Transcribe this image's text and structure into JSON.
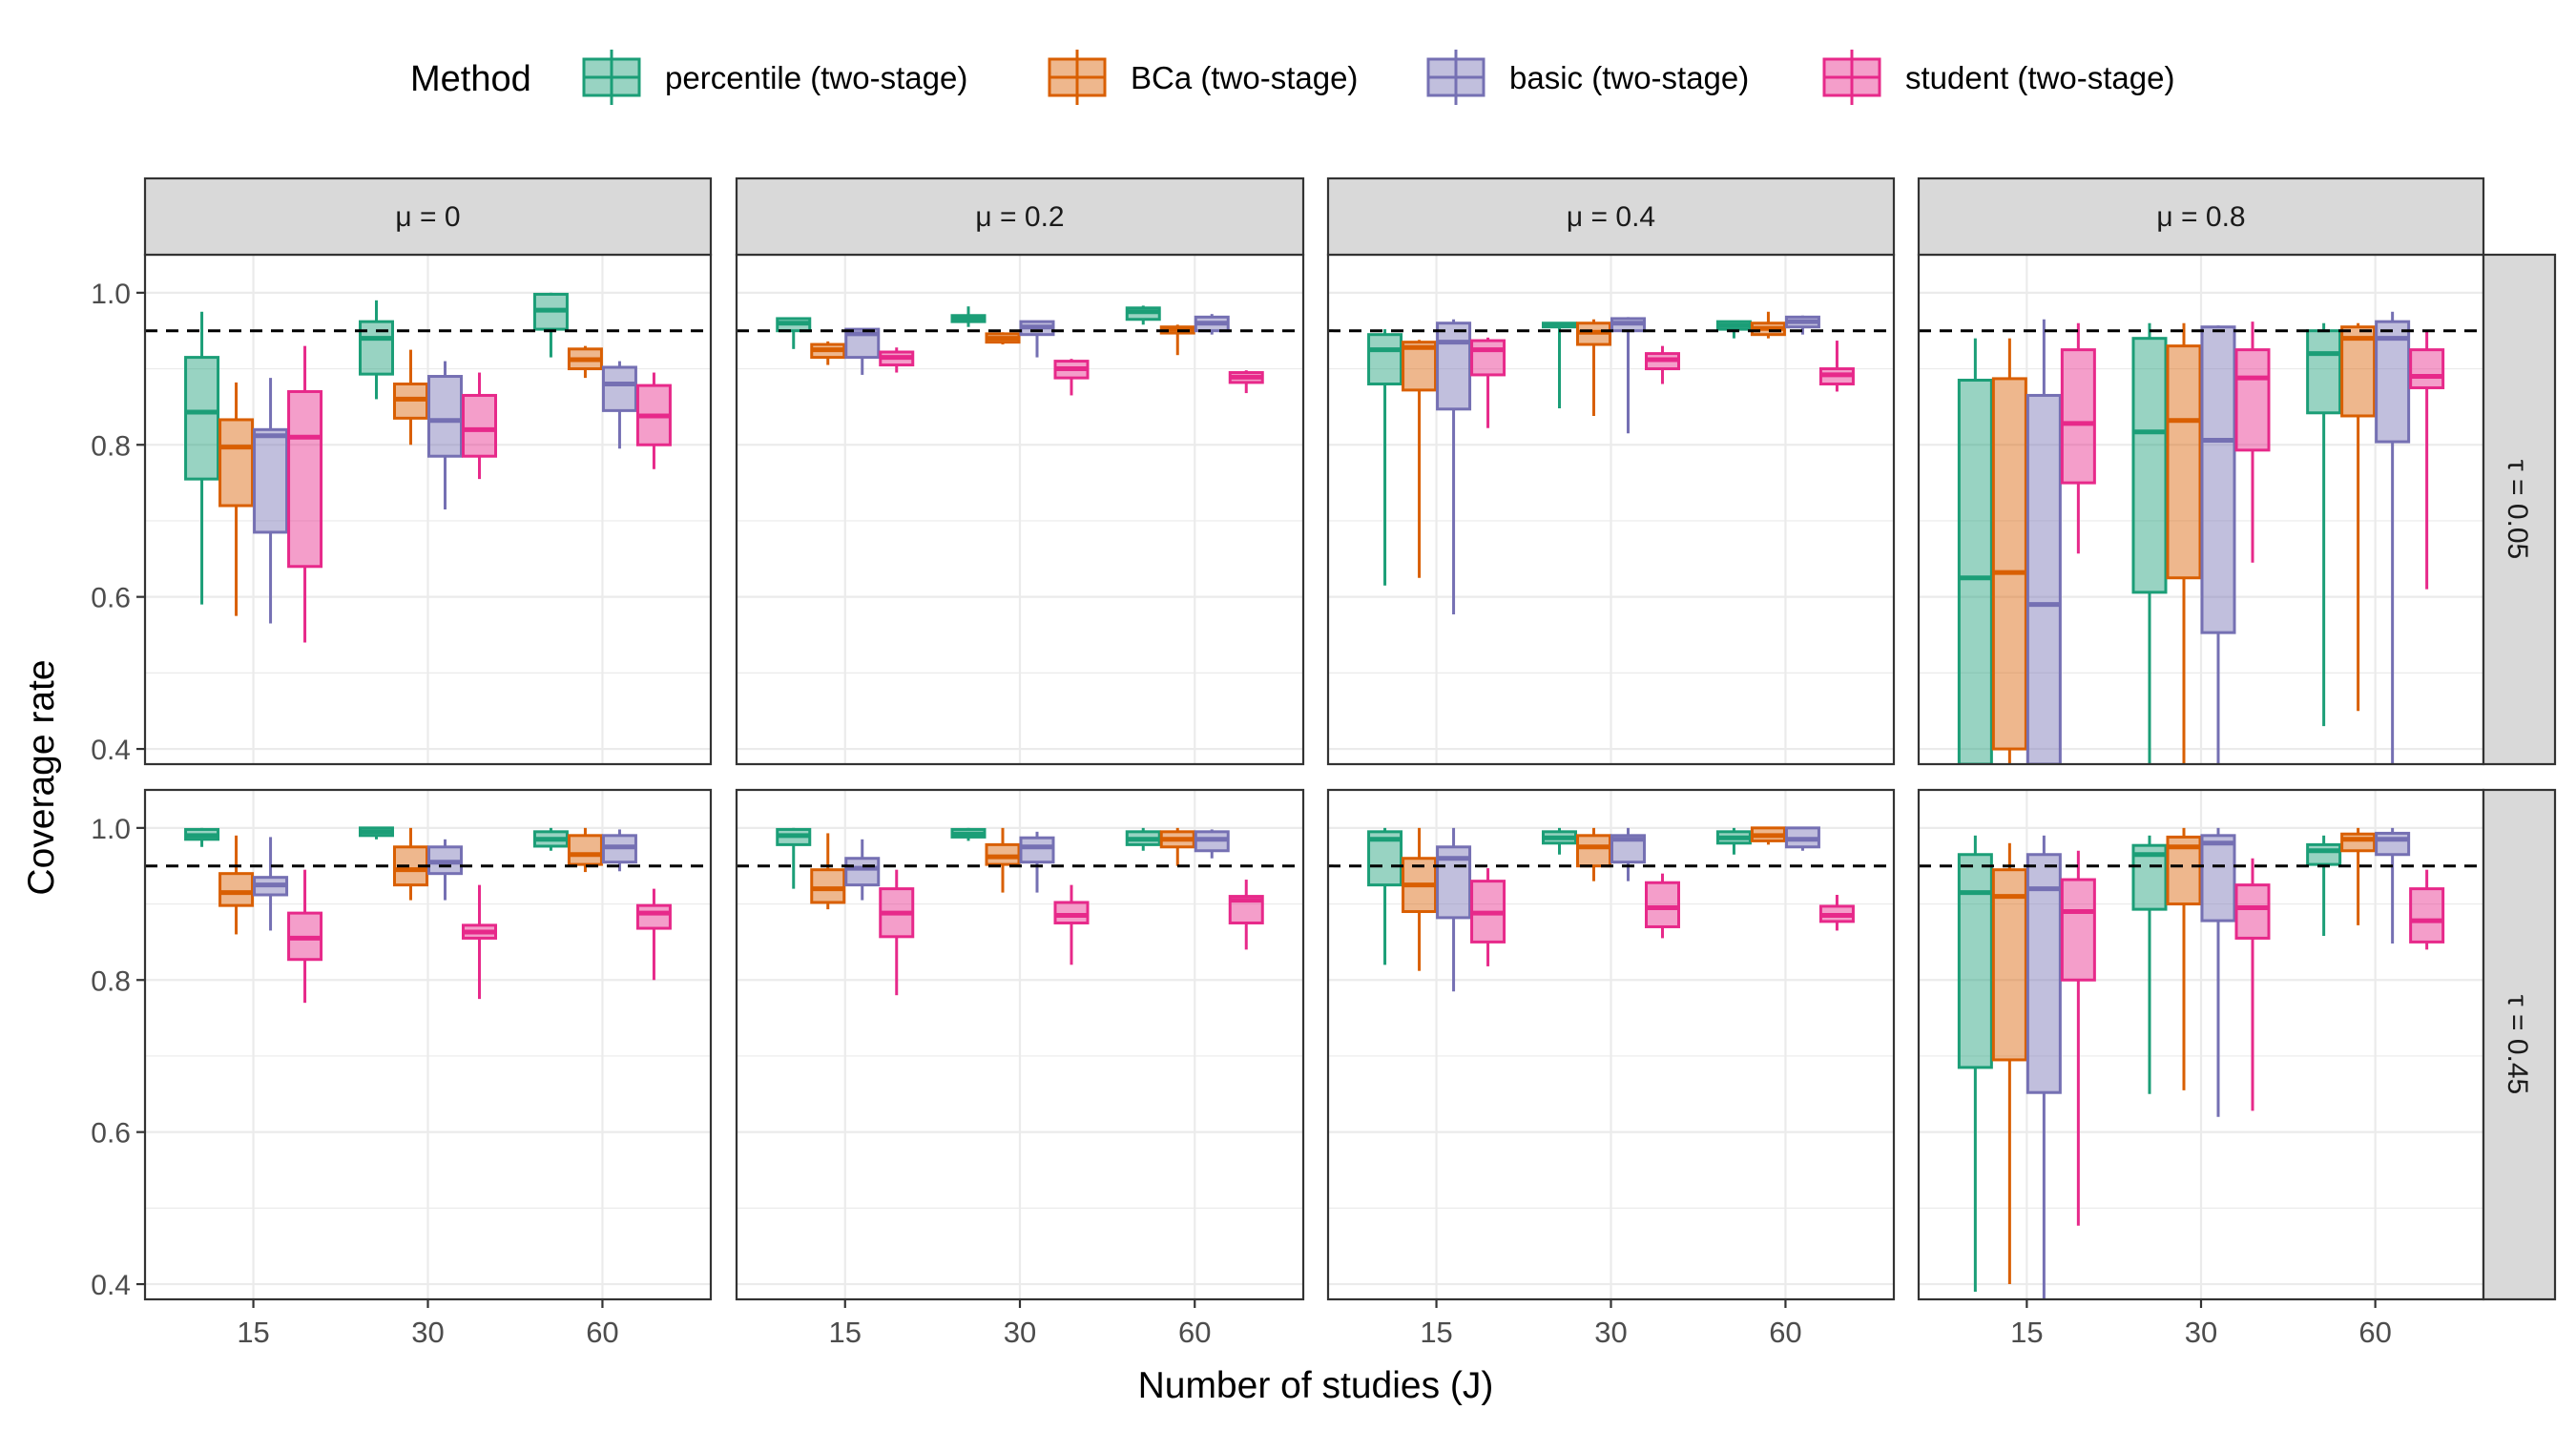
{
  "legend": {
    "title": "Method",
    "items": [
      {
        "label": "percentile (two-stage)"
      },
      {
        "label": "BCa (two-stage)"
      },
      {
        "label": "basic (two-stage)"
      },
      {
        "label": "student (two-stage)"
      }
    ]
  },
  "axes": {
    "xlabel": "Number of studies (J)",
    "ylabel": "Coverage rate",
    "x_ticks": [
      "15",
      "30",
      "60"
    ],
    "y_ticks": [
      "0.4",
      "0.6",
      "0.8",
      "1.0"
    ]
  },
  "chart_data": {
    "type": "boxplot",
    "title": "",
    "xlabel": "Number of studies (J)",
    "ylabel": "Coverage rate",
    "ylim": [
      0.38,
      1.05
    ],
    "y_ticks": [
      0.4,
      0.6,
      0.8,
      1.0
    ],
    "reference_line": {
      "y": 0.95,
      "style": "dashed"
    },
    "grid": true,
    "legend_position": "top",
    "x_categories": [
      "15",
      "30",
      "60"
    ],
    "methods": [
      "percentile (two-stage)",
      "BCa (two-stage)",
      "basic (two-stage)",
      "student (two-stage)"
    ],
    "colors": {
      "percentile (two-stage)": "#1b9e77",
      "BCa (two-stage)": "#d95f02",
      "basic (two-stage)": "#7570b3",
      "student (two-stage)": "#e7298a"
    },
    "col_labels": [
      "μ = 0",
      "μ = 0.2",
      "μ = 0.4",
      "μ = 0.8"
    ],
    "row_labels": [
      "τ = 0.05",
      "τ = 0.45"
    ],
    "panels": [
      {
        "row": 0,
        "col": 0,
        "groups": [
          [
            [
              0.59,
              0.755,
              0.843,
              0.915,
              0.975
            ],
            [
              0.575,
              0.72,
              0.797,
              0.833,
              0.882
            ],
            [
              0.565,
              0.685,
              0.812,
              0.82,
              0.888
            ],
            [
              0.54,
              0.64,
              0.81,
              0.87,
              0.93
            ]
          ],
          [
            [
              0.86,
              0.893,
              0.94,
              0.962,
              0.99
            ],
            [
              0.8,
              0.835,
              0.86,
              0.88,
              0.925
            ],
            [
              0.715,
              0.785,
              0.832,
              0.89,
              0.91
            ],
            [
              0.755,
              0.785,
              0.82,
              0.865,
              0.895
            ]
          ],
          [
            [
              0.915,
              0.952,
              0.977,
              0.998,
              1.0
            ],
            [
              0.888,
              0.9,
              0.912,
              0.926,
              0.93
            ],
            [
              0.795,
              0.845,
              0.88,
              0.902,
              0.91
            ],
            [
              0.768,
              0.8,
              0.838,
              0.878,
              0.895
            ]
          ]
        ]
      },
      {
        "row": 0,
        "col": 1,
        "groups": [
          [
            [
              0.926,
              0.95,
              0.96,
              0.966,
              0.967
            ],
            [
              0.905,
              0.915,
              0.925,
              0.932,
              0.936
            ],
            [
              0.892,
              0.915,
              0.946,
              0.952,
              0.953
            ],
            [
              0.895,
              0.905,
              0.915,
              0.922,
              0.928
            ]
          ],
          [
            [
              0.955,
              0.962,
              0.966,
              0.97,
              0.982
            ],
            [
              0.932,
              0.935,
              0.94,
              0.946,
              0.948
            ],
            [
              0.915,
              0.945,
              0.955,
              0.962,
              0.963
            ],
            [
              0.865,
              0.888,
              0.9,
              0.91,
              0.913
            ]
          ],
          [
            [
              0.958,
              0.965,
              0.975,
              0.98,
              0.983
            ],
            [
              0.918,
              0.947,
              0.952,
              0.955,
              0.958
            ],
            [
              0.945,
              0.95,
              0.96,
              0.968,
              0.972
            ],
            [
              0.868,
              0.882,
              0.889,
              0.895,
              0.898
            ]
          ]
        ]
      },
      {
        "row": 0,
        "col": 2,
        "groups": [
          [
            [
              0.615,
              0.88,
              0.925,
              0.945,
              0.952
            ],
            [
              0.625,
              0.872,
              0.928,
              0.935,
              0.938
            ],
            [
              0.577,
              0.847,
              0.935,
              0.96,
              0.965
            ],
            [
              0.822,
              0.892,
              0.925,
              0.937,
              0.941
            ]
          ],
          [
            [
              0.848,
              0.955,
              0.958,
              0.96,
              0.961
            ],
            [
              0.838,
              0.932,
              0.948,
              0.96,
              0.965
            ],
            [
              0.815,
              0.95,
              0.96,
              0.966,
              0.968
            ],
            [
              0.88,
              0.9,
              0.912,
              0.92,
              0.93
            ]
          ],
          [
            [
              0.94,
              0.952,
              0.957,
              0.962,
              0.963
            ],
            [
              0.94,
              0.945,
              0.953,
              0.96,
              0.975
            ],
            [
              0.945,
              0.955,
              0.962,
              0.968,
              0.97
            ],
            [
              0.87,
              0.88,
              0.892,
              0.9,
              0.937
            ]
          ]
        ]
      },
      {
        "row": 0,
        "col": 3,
        "groups": [
          [
            [
              0.38,
              0.38,
              0.625,
              0.885,
              0.94
            ],
            [
              0.38,
              0.4,
              0.632,
              0.887,
              0.94
            ],
            [
              0.38,
              0.38,
              0.59,
              0.865,
              0.965
            ],
            [
              0.657,
              0.75,
              0.828,
              0.925,
              0.96
            ]
          ],
          [
            [
              0.38,
              0.606,
              0.817,
              0.94,
              0.96
            ],
            [
              0.38,
              0.625,
              0.832,
              0.93,
              0.96
            ],
            [
              0.38,
              0.553,
              0.806,
              0.955,
              0.957
            ],
            [
              0.645,
              0.793,
              0.888,
              0.925,
              0.962
            ]
          ],
          [
            [
              0.43,
              0.842,
              0.92,
              0.95,
              0.96
            ],
            [
              0.45,
              0.838,
              0.94,
              0.955,
              0.96
            ],
            [
              0.38,
              0.804,
              0.94,
              0.962,
              0.975
            ],
            [
              0.61,
              0.875,
              0.89,
              0.925,
              0.95
            ]
          ]
        ]
      },
      {
        "row": 1,
        "col": 0,
        "groups": [
          [
            [
              0.975,
              0.985,
              0.99,
              0.998,
              1.0
            ],
            [
              0.86,
              0.898,
              0.915,
              0.94,
              0.99
            ],
            [
              0.865,
              0.912,
              0.925,
              0.935,
              0.988
            ],
            [
              0.77,
              0.827,
              0.855,
              0.888,
              0.945
            ]
          ],
          [
            [
              0.985,
              0.99,
              0.995,
              1.0,
              1.0
            ],
            [
              0.905,
              0.925,
              0.945,
              0.975,
              1.0
            ],
            [
              0.905,
              0.94,
              0.955,
              0.975,
              0.985
            ],
            [
              0.775,
              0.855,
              0.863,
              0.872,
              0.925
            ]
          ],
          [
            [
              0.97,
              0.976,
              0.985,
              0.995,
              1.0
            ],
            [
              0.942,
              0.952,
              0.965,
              0.99,
              1.0
            ],
            [
              0.943,
              0.955,
              0.975,
              0.99,
              0.998
            ],
            [
              0.8,
              0.868,
              0.888,
              0.898,
              0.92
            ]
          ]
        ]
      },
      {
        "row": 1,
        "col": 1,
        "groups": [
          [
            [
              0.92,
              0.978,
              0.99,
              0.998,
              1.0
            ],
            [
              0.893,
              0.902,
              0.92,
              0.945,
              0.993
            ],
            [
              0.905,
              0.925,
              0.947,
              0.96,
              0.985
            ],
            [
              0.78,
              0.857,
              0.888,
              0.92,
              0.945
            ]
          ],
          [
            [
              0.983,
              0.988,
              0.992,
              0.998,
              1.0
            ],
            [
              0.915,
              0.952,
              0.962,
              0.978,
              1.0
            ],
            [
              0.915,
              0.955,
              0.975,
              0.987,
              0.995
            ],
            [
              0.82,
              0.875,
              0.885,
              0.902,
              0.925
            ]
          ],
          [
            [
              0.97,
              0.978,
              0.985,
              0.995,
              1.0
            ],
            [
              0.95,
              0.975,
              0.985,
              0.995,
              1.0
            ],
            [
              0.96,
              0.97,
              0.985,
              0.995,
              0.998
            ],
            [
              0.84,
              0.875,
              0.905,
              0.91,
              0.932
            ]
          ]
        ]
      },
      {
        "row": 1,
        "col": 2,
        "groups": [
          [
            [
              0.82,
              0.925,
              0.985,
              0.995,
              1.0
            ],
            [
              0.812,
              0.89,
              0.925,
              0.96,
              1.0
            ],
            [
              0.785,
              0.882,
              0.96,
              0.975,
              1.0
            ],
            [
              0.818,
              0.85,
              0.888,
              0.93,
              0.947
            ]
          ],
          [
            [
              0.965,
              0.98,
              0.987,
              0.995,
              1.0
            ],
            [
              0.93,
              0.95,
              0.975,
              0.99,
              1.0
            ],
            [
              0.93,
              0.955,
              0.985,
              0.99,
              1.0
            ],
            [
              0.855,
              0.87,
              0.895,
              0.928,
              0.94
            ]
          ],
          [
            [
              0.965,
              0.98,
              0.987,
              0.995,
              1.0
            ],
            [
              0.978,
              0.983,
              0.99,
              1.0,
              1.0
            ],
            [
              0.97,
              0.975,
              0.985,
              1.0,
              1.0
            ],
            [
              0.865,
              0.877,
              0.885,
              0.897,
              0.912
            ]
          ]
        ]
      },
      {
        "row": 1,
        "col": 3,
        "groups": [
          [
            [
              0.39,
              0.685,
              0.915,
              0.965,
              0.99
            ],
            [
              0.4,
              0.695,
              0.91,
              0.945,
              0.98
            ],
            [
              0.38,
              0.652,
              0.92,
              0.965,
              0.99
            ],
            [
              0.477,
              0.8,
              0.89,
              0.932,
              0.97
            ]
          ],
          [
            [
              0.65,
              0.893,
              0.965,
              0.977,
              0.99
            ],
            [
              0.655,
              0.9,
              0.975,
              0.988,
              1.0
            ],
            [
              0.62,
              0.878,
              0.98,
              0.99,
              1.0
            ],
            [
              0.628,
              0.855,
              0.895,
              0.925,
              0.96
            ]
          ],
          [
            [
              0.858,
              0.952,
              0.97,
              0.978,
              0.99
            ],
            [
              0.872,
              0.97,
              0.985,
              0.992,
              1.0
            ],
            [
              0.848,
              0.965,
              0.985,
              0.993,
              1.0
            ],
            [
              0.84,
              0.85,
              0.878,
              0.92,
              0.945
            ]
          ]
        ]
      }
    ]
  }
}
